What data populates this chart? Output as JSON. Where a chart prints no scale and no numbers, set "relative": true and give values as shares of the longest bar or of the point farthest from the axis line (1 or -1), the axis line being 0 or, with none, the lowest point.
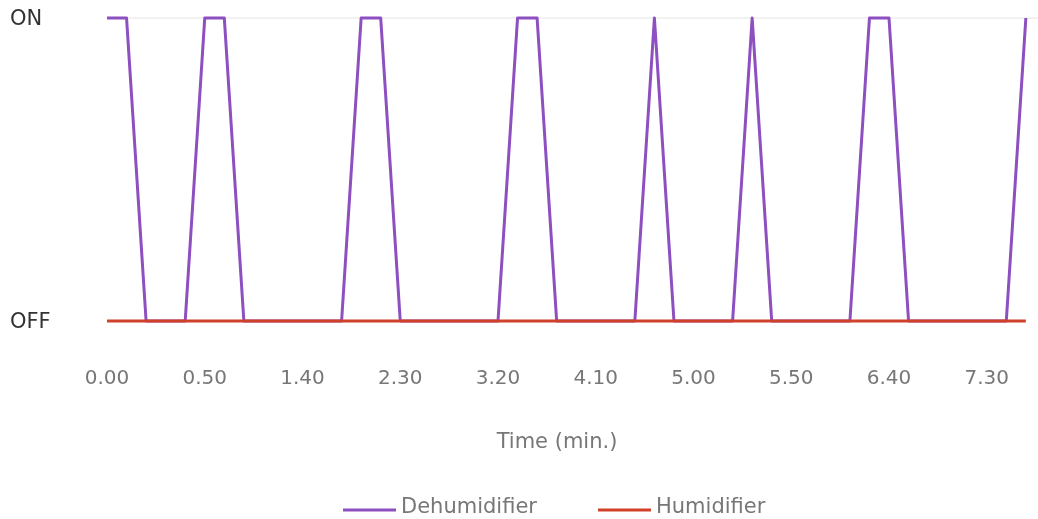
{
  "chart_data": {
    "type": "line",
    "xlabel": "Time (min.)",
    "categories": [
      "0.00",
      null,
      null,
      null,
      null,
      "0.50",
      null,
      null,
      null,
      null,
      "1.40",
      null,
      null,
      null,
      null,
      "2.30",
      null,
      null,
      null,
      null,
      "3.20",
      null,
      null,
      null,
      null,
      "4.10",
      null,
      null,
      null,
      null,
      "5.00",
      null,
      null,
      null,
      null,
      "5.50",
      null,
      null,
      null,
      null,
      "6.40",
      null,
      null,
      null,
      null,
      "7.30",
      null,
      null
    ],
    "series": [
      {
        "name": "Dehumidifier",
        "color": "#8e4fc0",
        "values": [
          1,
          1,
          0,
          0,
          0,
          1,
          1,
          0,
          0,
          0,
          0,
          0,
          0,
          1,
          1,
          0,
          0,
          0,
          0,
          0,
          0,
          1,
          1,
          0,
          0,
          0,
          0,
          0,
          1,
          0,
          0,
          0,
          0,
          1,
          0,
          0,
          0,
          0,
          0,
          1,
          1,
          0,
          0,
          0,
          0,
          0,
          0,
          1
        ]
      },
      {
        "name": "Humidifier",
        "color": "#cf4128",
        "values": [
          0,
          0,
          0,
          0,
          0,
          0,
          0,
          0,
          0,
          0,
          0,
          0,
          0,
          0,
          0,
          0,
          0,
          0,
          0,
          0,
          0,
          0,
          0,
          0,
          0,
          0,
          0,
          0,
          0,
          0,
          0,
          0,
          0,
          0,
          0,
          0,
          0,
          0,
          0,
          0,
          0,
          0,
          0,
          0,
          0,
          0,
          0,
          0
        ]
      }
    ],
    "relative": true,
    "annotations": [
      "ON",
      "OFF"
    ],
    "ref_lines": [
      {
        "axis": "y",
        "value": 1,
        "color": "#e4e4e4"
      }
    ],
    "legend": "bottom",
    "marker": "none",
    "line_style": "solid"
  }
}
